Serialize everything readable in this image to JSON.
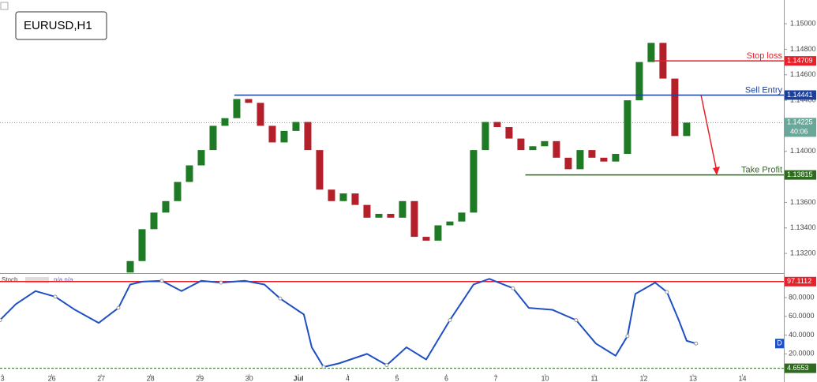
{
  "chart_data": {
    "type": "candlestick",
    "title": "EURUSD,H1",
    "x": [
      2.59,
      2.83,
      3.07,
      3.31,
      3.55,
      3.79,
      4.03,
      4.27,
      4.51,
      4.75,
      4.99,
      5.23,
      5.47,
      5.71,
      5.95,
      6.19,
      6.43,
      6.67,
      6.91,
      7.15,
      7.39,
      7.63,
      7.87,
      8.11,
      8.35,
      8.59,
      8.83,
      9.07,
      9.31,
      9.55,
      9.79,
      10.03,
      10.27,
      10.51,
      10.75,
      10.99,
      11.23,
      11.47,
      11.71,
      11.95,
      12.19,
      12.43,
      12.67,
      12.91,
      13.15,
      13.39,
      13.63,
      13.87
    ],
    "open": [
      1.1305,
      1.1314,
      1.1339,
      1.1352,
      1.1361,
      1.1376,
      1.1389,
      1.1401,
      1.142,
      1.1426,
      1.1441,
      1.1438,
      1.142,
      1.1407,
      1.1416,
      1.1423,
      1.1401,
      1.137,
      1.1361,
      1.1367,
      1.1358,
      1.1348,
      1.1351,
      1.1348,
      1.1361,
      1.1333,
      1.133,
      1.1342,
      1.1345,
      1.1352,
      1.1401,
      1.1423,
      1.1419,
      1.141,
      1.1401,
      1.1404,
      1.1408,
      1.1395,
      1.1386,
      1.1401,
      1.1395,
      1.1392,
      1.1398,
      1.144,
      1.147,
      1.1485,
      1.1457,
      1.1412
    ],
    "close": [
      1.1314,
      1.1339,
      1.1352,
      1.1361,
      1.1376,
      1.1389,
      1.1401,
      1.142,
      1.1426,
      1.1441,
      1.1438,
      1.142,
      1.1407,
      1.1416,
      1.1423,
      1.1401,
      1.137,
      1.1361,
      1.1367,
      1.1358,
      1.1348,
      1.1351,
      1.1348,
      1.1361,
      1.1333,
      1.133,
      1.1342,
      1.1345,
      1.1352,
      1.1401,
      1.1423,
      1.1419,
      1.141,
      1.1401,
      1.1404,
      1.1408,
      1.1395,
      1.1386,
      1.1401,
      1.1395,
      1.1392,
      1.1398,
      1.144,
      1.147,
      1.1485,
      1.1457,
      1.1412,
      1.14225
    ],
    "up_color": "#1e7a24",
    "down_color": "#b3202a",
    "xlim": [
      -0.05,
      15.84
    ],
    "xticks": [
      {
        "value": 0,
        "label": "3"
      },
      {
        "value": 1,
        "label": "26"
      },
      {
        "value": 2,
        "label": "27"
      },
      {
        "value": 3,
        "label": "28"
      },
      {
        "value": 4,
        "label": "29"
      },
      {
        "value": 5,
        "label": "30"
      },
      {
        "value": 6,
        "label": "Jul"
      },
      {
        "value": 7,
        "label": "4"
      },
      {
        "value": 8,
        "label": "5"
      },
      {
        "value": 9,
        "label": "6"
      },
      {
        "value": 10,
        "label": "7"
      },
      {
        "value": 11,
        "label": "10"
      },
      {
        "value": 12,
        "label": "11"
      },
      {
        "value": 13,
        "label": "12"
      },
      {
        "value": 14,
        "label": "13"
      },
      {
        "value": 15,
        "label": "14"
      }
    ],
    "ylim": [
      1.13052,
      1.15186
    ],
    "yticks": [
      {
        "value": 1.15,
        "label": "1.15000"
      },
      {
        "value": 1.148,
        "label": "1.14800"
      },
      {
        "value": 1.146,
        "label": "1.14600"
      },
      {
        "value": 1.144,
        "label": "1.14400"
      },
      {
        "value": 1.142,
        "label": "1.14200"
      },
      {
        "value": 1.14,
        "label": "1.14000"
      },
      {
        "value": 1.138,
        "label": "1.13800"
      },
      {
        "value": 1.136,
        "label": "1.13600"
      },
      {
        "value": 1.134,
        "label": "1.13400"
      },
      {
        "value": 1.132,
        "label": "1.13200"
      }
    ],
    "levels": [
      {
        "name": "Stop loss",
        "value": 1.14709,
        "color": "#e8202a",
        "x": 13.2
      },
      {
        "name": "Sell Entry",
        "value": 1.14441,
        "color": "#1a3f9c",
        "x": 4.7
      },
      {
        "name": "Take Profit",
        "value": 1.13815,
        "color": "#2e6b1e",
        "x": 10.6
      }
    ],
    "current": {
      "value": 1.14225,
      "timer": "40:06",
      "color": "#6aa79a"
    },
    "stoch": {
      "name": "Stoch",
      "status": "n/a n/a",
      "badge": "D",
      "color": "#1f4fc4",
      "x": [
        -0.05,
        0.27,
        0.67,
        1.07,
        1.47,
        1.95,
        2.35,
        2.59,
        2.83,
        3.23,
        3.63,
        4.03,
        4.43,
        4.91,
        5.31,
        5.63,
        6.11,
        6.27,
        6.51,
        6.83,
        7.39,
        7.79,
        8.19,
        8.59,
        9.07,
        9.55,
        9.87,
        10.35,
        10.67,
        11.15,
        11.63,
        12.03,
        12.43,
        12.67,
        12.83,
        13.23,
        13.47,
        13.71,
        13.87,
        14.06
      ],
      "values": [
        56,
        73,
        87,
        81,
        67,
        53,
        69,
        94,
        97,
        98,
        87,
        98,
        96,
        98,
        94,
        79,
        62,
        27,
        6,
        10,
        20,
        8,
        27,
        14,
        56,
        94,
        100,
        90,
        69,
        67,
        56,
        31,
        18,
        39,
        84,
        96,
        86,
        56,
        34,
        31
      ],
      "ylim": [
        -10,
        104.5
      ],
      "yticks": [
        {
          "value": 80,
          "label": "80.0000"
        },
        {
          "value": 60,
          "label": "60.0000"
        },
        {
          "value": 40,
          "label": "40.0000"
        },
        {
          "value": 20,
          "label": "20.0000"
        }
      ],
      "levels": [
        {
          "value": 97.1112,
          "color": "#e8202a"
        },
        {
          "value": 4.6553,
          "color": "#2e6b1e"
        }
      ]
    }
  }
}
